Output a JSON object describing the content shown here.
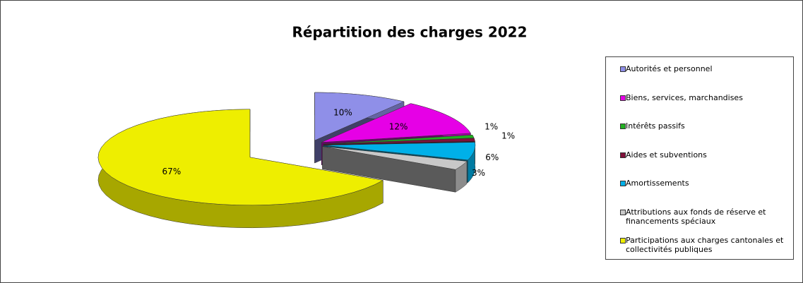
{
  "chart_data": {
    "type": "pie",
    "title": "Répartition des charges 2022",
    "categories": [
      "Autorités et personnel",
      "Biens, services, marchandises",
      "Intérêts passifs",
      "Aides et subventions",
      "Amortissements",
      "Attributions aux fonds de réserve et financements spéciaux",
      "Participations aux charges cantonales et collectivités publiques"
    ],
    "values": [
      10,
      12,
      1,
      1,
      6,
      3,
      67
    ],
    "value_labels": [
      "10%",
      "12%",
      "1%",
      "1%",
      "6%",
      "3%",
      "67%"
    ],
    "colors": [
      "#8f8fe8",
      "#e600e6",
      "#22b022",
      "#80103a",
      "#00b0e8",
      "#c8c8c8",
      "#eeee00"
    ],
    "legend": "right"
  }
}
